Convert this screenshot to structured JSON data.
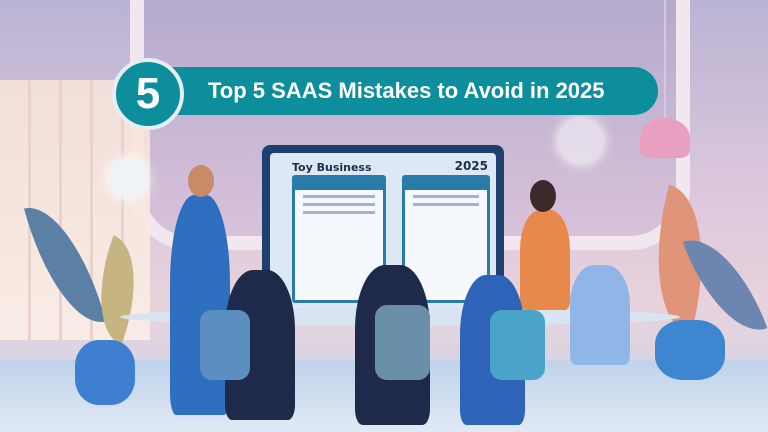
{
  "banner": {
    "number": "5",
    "title": "Top 5 SAAS Mistakes to Avoid in 2025"
  },
  "screen": {
    "title": "Toy Business",
    "year": "2025"
  },
  "colors": {
    "banner": "#0d8e9c",
    "monitor": "#1f3f6e",
    "background": "#d9c6dc"
  }
}
